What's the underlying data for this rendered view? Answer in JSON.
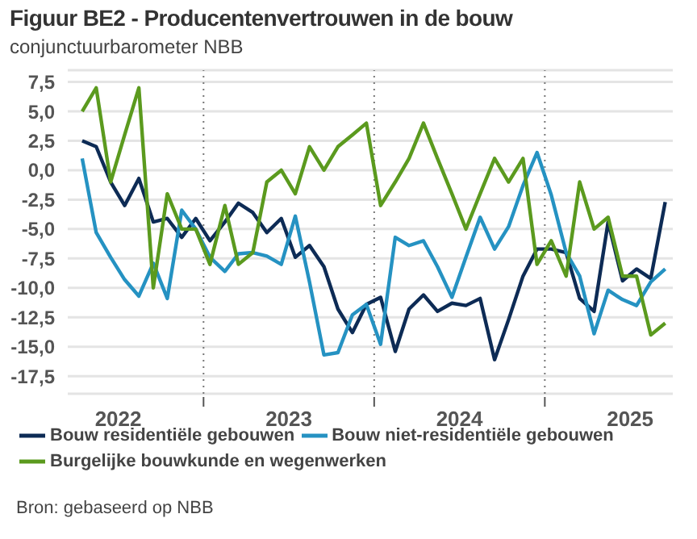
{
  "chart_data": {
    "type": "line",
    "title": "Figuur BE2 - Producentenvertrouwen in de bouw",
    "subtitle": "conjunctuurbarometer NBB",
    "x": [
      "2022-04-15",
      "2022-05-15",
      "2022-06-15",
      "2022-07-15",
      "2022-08-15",
      "2022-09-15",
      "2022-10-15",
      "2022-11-15",
      "2022-12-15",
      "2023-01-15",
      "2023-02-15",
      "2023-03-15",
      "2023-04-15",
      "2023-05-15",
      "2023-06-15",
      "2023-07-15",
      "2023-08-15",
      "2023-09-15",
      "2023-10-15",
      "2023-11-15",
      "2023-12-15",
      "2024-01-15",
      "2024-02-15",
      "2024-03-15",
      "2024-04-15",
      "2024-05-15",
      "2024-06-15",
      "2024-07-15",
      "2024-08-15",
      "2024-09-15",
      "2024-10-15",
      "2024-11-15",
      "2024-12-15",
      "2025-01-15",
      "2025-02-15",
      "2025-03-15",
      "2025-04-15",
      "2025-05-15",
      "2025-06-15",
      "2025-07-15",
      "2025-08-15",
      "2025-09-15"
    ],
    "series": [
      {
        "name": "Bouw residentiële gebouwen",
        "color": "#0d2b55",
        "values": [
          2.5,
          2.0,
          -1.0,
          -3.0,
          -0.7,
          -4.4,
          -4.1,
          -5.7,
          -4.1,
          -6.0,
          -4.4,
          -2.8,
          -3.6,
          -5.3,
          -4.1,
          -7.4,
          -6.4,
          -8.2,
          -11.8,
          -13.8,
          -11.4,
          -10.8,
          -15.4,
          -11.8,
          -10.6,
          -12.0,
          -11.3,
          -11.5,
          -10.9,
          -16.1,
          -12.7,
          -9.0,
          -6.7,
          -6.7,
          -7.0,
          -10.9,
          -12.0,
          -4.4,
          -9.4,
          -8.4,
          -9.2,
          -2.7
        ]
      },
      {
        "name": "Bouw niet-residentiële gebouwen",
        "color": "#2592c2",
        "values": [
          1.0,
          -5.3,
          -7.4,
          -9.3,
          -10.7,
          -7.9,
          -10.9,
          -3.4,
          -5.0,
          -7.4,
          -8.6,
          -7.1,
          -7.0,
          -7.3,
          -8.0,
          -3.9,
          -9.5,
          -15.7,
          -15.5,
          -12.3,
          -11.4,
          -14.8,
          -5.7,
          -6.4,
          -6.0,
          -8.2,
          -10.8,
          -7.4,
          -4.0,
          -6.7,
          -4.8,
          -1.3,
          1.5,
          -2.1,
          -7.0,
          -9.0,
          -13.9,
          -10.2,
          -11.0,
          -11.5,
          -9.5,
          -8.4
        ]
      },
      {
        "name": "Burgelijke bouwkunde en wegenwerken",
        "color": "#5b9a1e",
        "values": [
          5.0,
          7.0,
          -1.0,
          3.0,
          7.0,
          -10.0,
          -2.0,
          -5.0,
          -5.0,
          -8.0,
          -3.0,
          -8.0,
          -7.0,
          -1.0,
          0.0,
          -2.0,
          2.0,
          0.0,
          2.0,
          3.0,
          4.0,
          -3.0,
          -1.0,
          1.0,
          4.0,
          1.0,
          -2.0,
          -5.0,
          -2.0,
          1.0,
          -1.0,
          1.0,
          -8.0,
          -6.0,
          -9.0,
          -1.0,
          -5.0,
          -4.0,
          -9.0,
          -9.0,
          -14.0,
          -13.0
        ]
      }
    ],
    "xlim": [
      "2022-03-15",
      "2025-10-01"
    ],
    "xticks": [
      {
        "value": "2022-07-01",
        "label": "2022"
      },
      {
        "value": "2023-01-01",
        "label": null
      },
      {
        "value": "2023-07-01",
        "label": "2023"
      },
      {
        "value": "2024-01-01",
        "label": null
      },
      {
        "value": "2024-07-01",
        "label": "2024"
      },
      {
        "value": "2025-01-01",
        "label": null
      },
      {
        "value": "2025-07-01",
        "label": "2025"
      }
    ],
    "ylim": [
      -19,
      8.5
    ],
    "yticks": [
      {
        "value": 7.5,
        "label": "7,5"
      },
      {
        "value": 5,
        "label": "5,0"
      },
      {
        "value": 2.5,
        "label": "2,5"
      },
      {
        "value": 0,
        "label": "0,0"
      },
      {
        "value": -2.5,
        "label": "-2,5"
      },
      {
        "value": -5,
        "label": "-5,0"
      },
      {
        "value": -7.5,
        "label": "-7,5"
      },
      {
        "value": -10,
        "label": "-10,0"
      },
      {
        "value": -12.5,
        "label": "-12,5"
      },
      {
        "value": -15,
        "label": "-15,0"
      },
      {
        "value": -17.5,
        "label": "-17,5"
      }
    ],
    "ref_lines": [
      {
        "axis": "x",
        "value": "2023-01-01",
        "color": "#777777",
        "line_style": "dotted"
      },
      {
        "axis": "x",
        "value": "2024-01-01",
        "color": "#777777",
        "line_style": "dotted"
      },
      {
        "axis": "x",
        "value": "2025-01-01",
        "color": "#777777",
        "line_style": "dotted"
      }
    ],
    "grid": "y",
    "legend": "bottom",
    "marker": "none",
    "line_style": "solid",
    "annotations": [
      "Bron: gebaseerd op NBB"
    ]
  }
}
